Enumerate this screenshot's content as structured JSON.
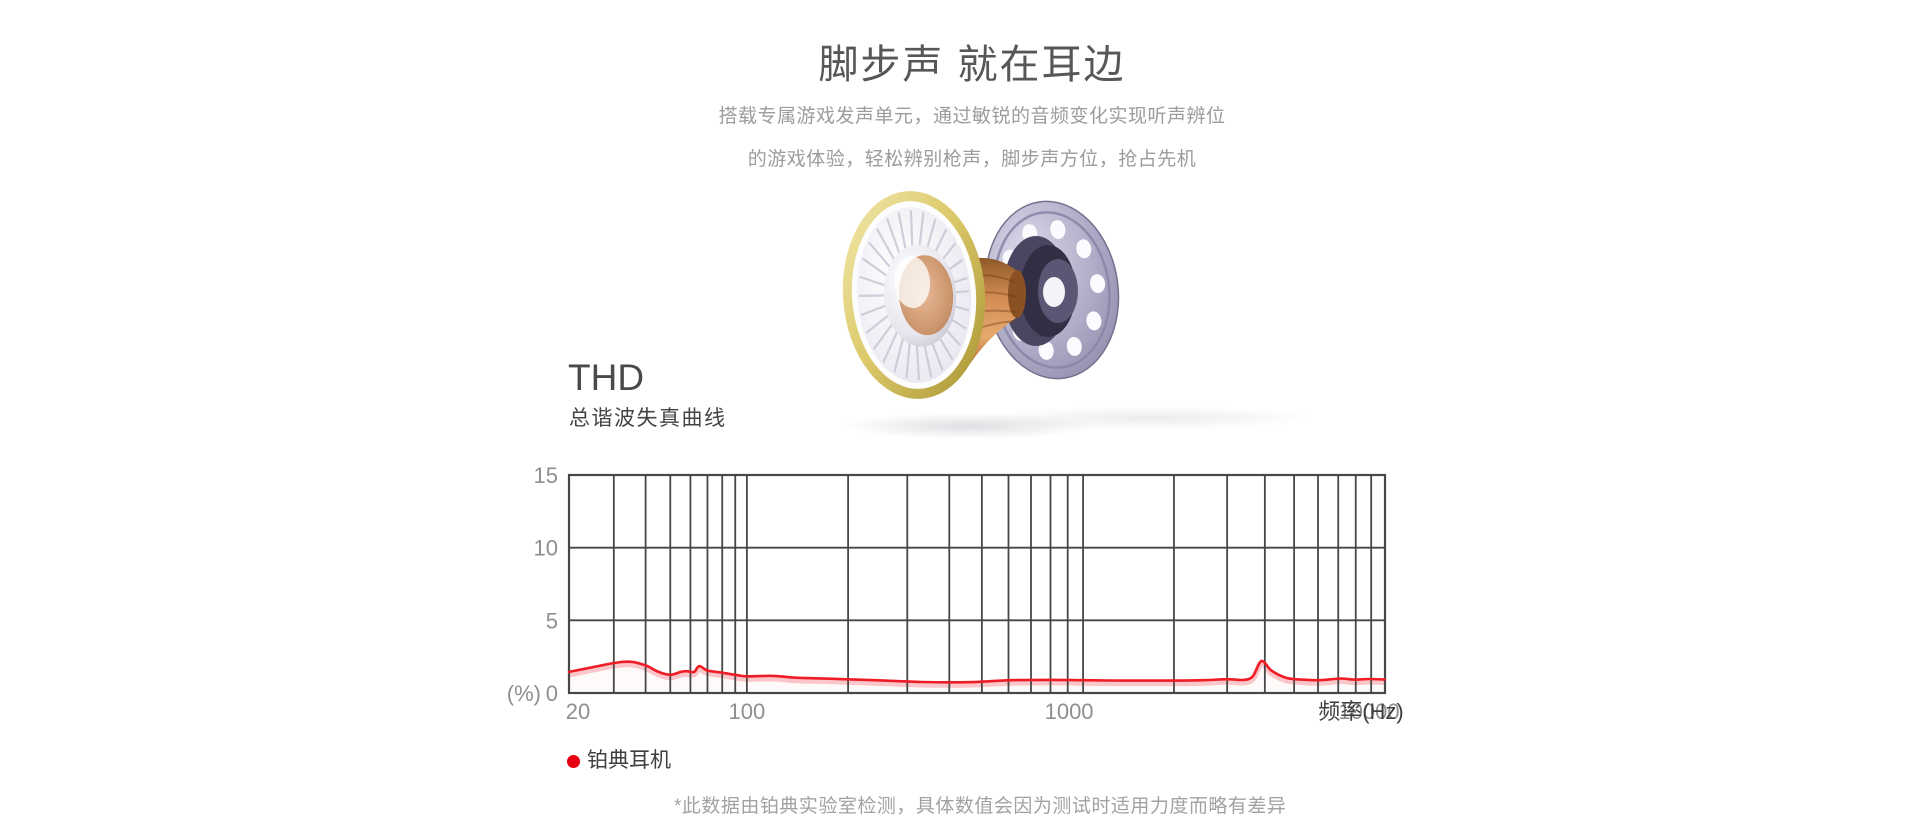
{
  "header": {
    "title": "脚步声 就在耳边",
    "subtitle_line1": "搭载专属游戏发声单元，通过敏锐的音频变化实现听声辨位",
    "subtitle_line2": "的游戏体验，轻松辨别枪声，脚步声方位，抢占先机"
  },
  "thd_section": {
    "heading": "THD",
    "subheading": "总谐波失真曲线"
  },
  "chart_data": {
    "type": "area",
    "title": "THD 总谐波失真曲线",
    "xlabel": "频率(Hz)",
    "ylabel": "(%)",
    "x_scale": "log",
    "xlim": [
      20,
      10000
    ],
    "ylim": [
      0,
      15
    ],
    "x_ticks": [
      20,
      100,
      1000,
      10000
    ],
    "y_ticks": [
      0,
      5,
      10,
      15
    ],
    "grid": true,
    "legend_position": "bottom-left",
    "series": [
      {
        "name": "铂典耳机",
        "color": "#ee1c25",
        "x": [
          20,
          26,
          31,
          35,
          40,
          45,
          50,
          55,
          58,
          62,
          65,
          70,
          80,
          90,
          100,
          120,
          140,
          180,
          240,
          330,
          450,
          610,
          830,
          1000,
          1400,
          1900,
          2500,
          3000,
          3400,
          3650,
          3900,
          4200,
          4700,
          5300,
          6100,
          7100,
          7900,
          8800,
          10000
        ],
        "y": [
          1.45,
          1.85,
          2.1,
          2.15,
          1.9,
          1.45,
          1.25,
          1.45,
          1.5,
          1.45,
          1.85,
          1.55,
          1.4,
          1.25,
          1.15,
          1.18,
          1.05,
          0.98,
          0.88,
          0.76,
          0.74,
          0.88,
          0.9,
          0.88,
          0.85,
          0.85,
          0.88,
          0.95,
          0.9,
          1.15,
          2.2,
          1.55,
          1.05,
          0.92,
          0.88,
          1.0,
          0.92,
          0.96,
          0.93
        ]
      }
    ]
  },
  "legend": {
    "marker_color": "#e60012",
    "label": "铂典耳机"
  },
  "footnote": "*此数据由铂典实验室检测，具体数值会因为测试时适用力度而略有差异",
  "colors": {
    "accent_red": "#ee1c25",
    "grid_line": "#474747",
    "tick_label": "#8f8f8f",
    "faded_tick": "#c4c4c4",
    "axis_label": "#3f3f3f",
    "title_text": "#575757",
    "muted_text": "#9c9c9c"
  }
}
